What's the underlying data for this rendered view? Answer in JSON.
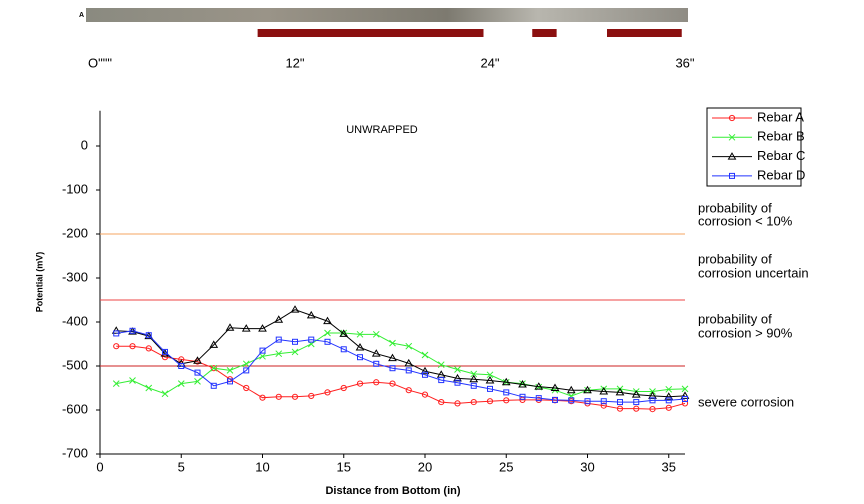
{
  "chart_data": {
    "type": "line",
    "plot_label": "UNWRAPPED",
    "xlabel": "Distance from Bottom (in)",
    "ylabel": "Potential (mV)",
    "xlim": [
      0,
      36
    ],
    "xticks": [
      0,
      5,
      10,
      15,
      20,
      25,
      30,
      35
    ],
    "ylim": [
      -700,
      80
    ],
    "yticks": [
      -700,
      -600,
      -500,
      -400,
      -300,
      -200,
      -100,
      0
    ],
    "legend": "right",
    "x": [
      1,
      2,
      3,
      4,
      5,
      6,
      7,
      8,
      9,
      10,
      11,
      12,
      13,
      14,
      15,
      16,
      17,
      18,
      19,
      20,
      21,
      22,
      23,
      24,
      25,
      26,
      27,
      28,
      29,
      30,
      31,
      32,
      33,
      34,
      35,
      36
    ],
    "series": [
      {
        "name": "Rebar A",
        "color": "#ff2020",
        "marker": "circle",
        "values": [
          -455,
          -455,
          -460,
          -480,
          -485,
          -490,
          -505,
          -530,
          -550,
          -572,
          -570,
          -570,
          -568,
          -560,
          -550,
          -540,
          -537,
          -540,
          -555,
          -565,
          -582,
          -585,
          -582,
          -580,
          -578,
          -577,
          -577,
          -578,
          -580,
          -585,
          -590,
          -597,
          -597,
          -598,
          -595,
          -585
        ]
      },
      {
        "name": "Rebar B",
        "color": "#33ee33",
        "marker": "x",
        "values": [
          -540,
          -533,
          -550,
          -563,
          -540,
          -535,
          -505,
          -510,
          -495,
          -478,
          -472,
          -468,
          -450,
          -425,
          -425,
          -428,
          -428,
          -448,
          -455,
          -475,
          -497,
          -508,
          -518,
          -520,
          -537,
          -540,
          -548,
          -555,
          -568,
          -555,
          -552,
          -552,
          -558,
          -558,
          -553,
          -552
        ]
      },
      {
        "name": "Rebar C",
        "color": "#000000",
        "marker": "triangle",
        "values": [
          -420,
          -422,
          -432,
          -472,
          -495,
          -488,
          -452,
          -413,
          -415,
          -415,
          -395,
          -372,
          -385,
          -398,
          -427,
          -458,
          -472,
          -482,
          -494,
          -512,
          -520,
          -528,
          -530,
          -533,
          -537,
          -542,
          -547,
          -550,
          -555,
          -555,
          -558,
          -560,
          -565,
          -568,
          -570,
          -568
        ]
      },
      {
        "name": "Rebar D",
        "color": "#2233ff",
        "marker": "square",
        "values": [
          -426,
          -420,
          -430,
          -468,
          -500,
          -515,
          -545,
          -535,
          -510,
          -465,
          -440,
          -445,
          -440,
          -445,
          -462,
          -480,
          -495,
          -505,
          -510,
          -520,
          -532,
          -538,
          -545,
          -552,
          -560,
          -570,
          -573,
          -577,
          -578,
          -580,
          -580,
          -582,
          -582,
          -578,
          -578,
          -575
        ]
      }
    ],
    "reference_lines": [
      {
        "value": -200,
        "color": "#f4a460"
      },
      {
        "value": -350,
        "color": "#ee4444"
      },
      {
        "value": -500,
        "color": "#cc2222"
      }
    ],
    "annotations": [
      {
        "lines": [
          "probability of",
          "corrosion < 10%"
        ]
      },
      {
        "lines": [
          "probability of",
          "corrosion uncertain"
        ]
      },
      {
        "lines": [
          "probability of",
          "corrosion > 90%"
        ]
      },
      {
        "lines": [
          "severe corrosion"
        ]
      }
    ],
    "top_strip": {
      "label": "A",
      "ticks": [
        {
          "value": 0,
          "label": "O\"\"\""
        },
        {
          "value": 12,
          "label": "12\""
        },
        {
          "value": 24,
          "label": "24\""
        },
        {
          "value": 36,
          "label": "36\""
        }
      ],
      "segments": [
        [
          9.7,
          23.6
        ],
        [
          26.6,
          28.1
        ],
        [
          31.2,
          35.8
        ]
      ],
      "segment_color": "#8b1010"
    }
  }
}
